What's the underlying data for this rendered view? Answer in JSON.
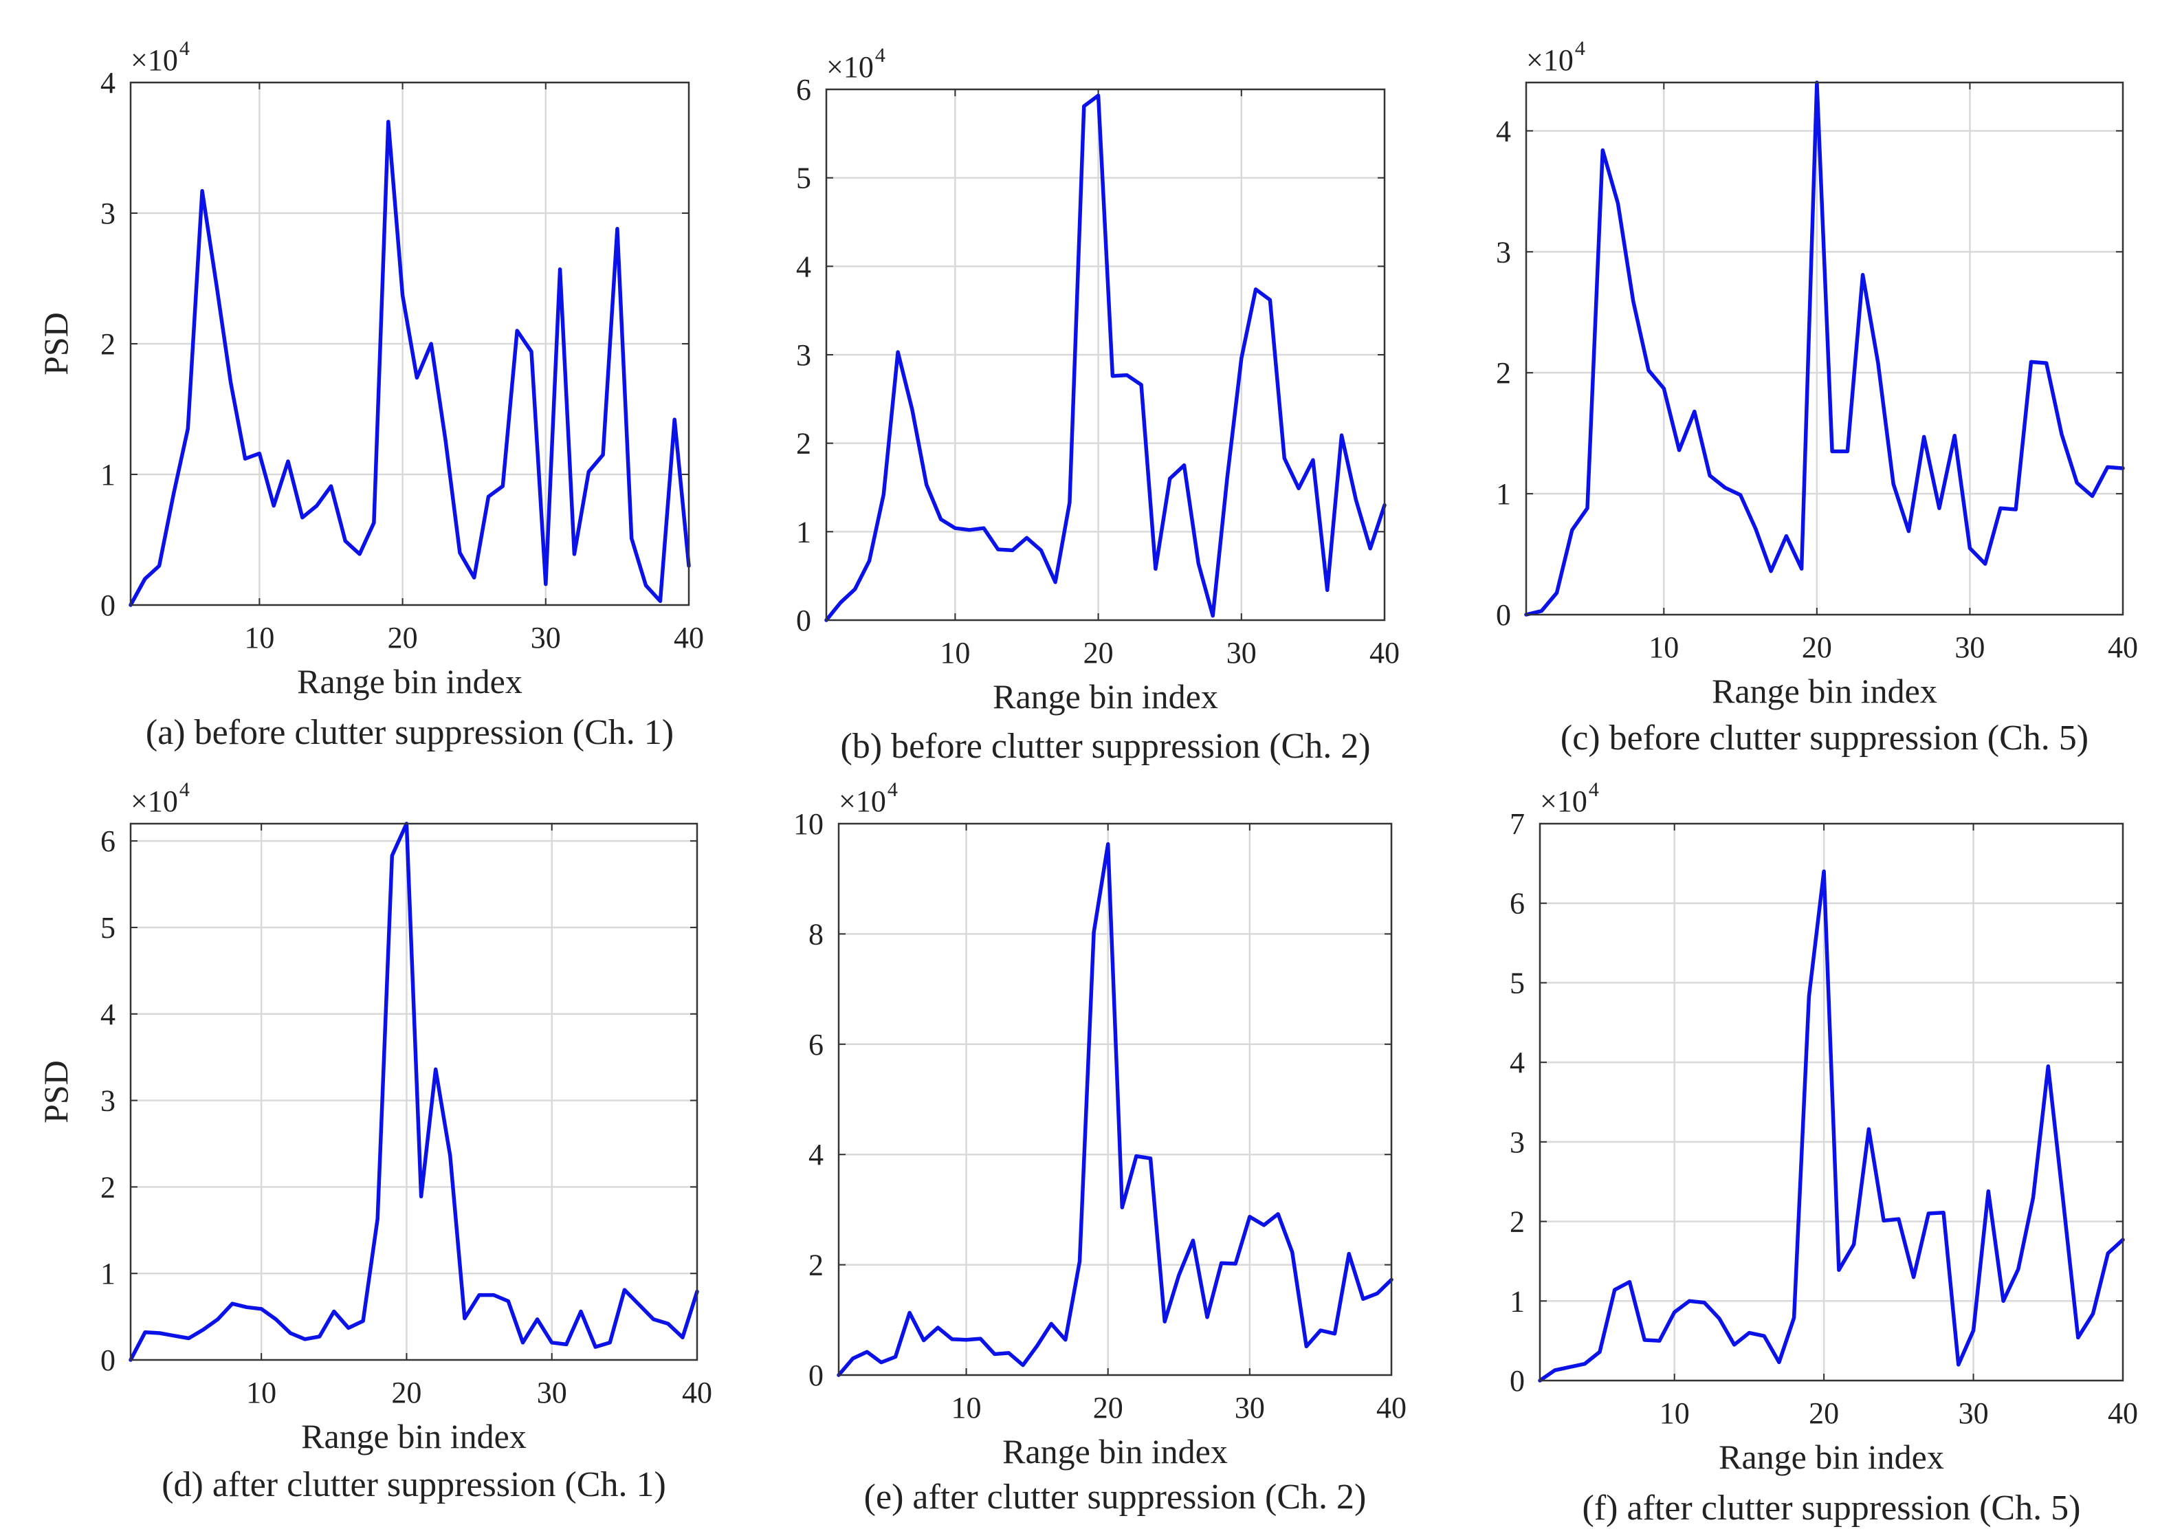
{
  "figure": {
    "captions": [
      "(a) before clutter suppression (Ch. 1)",
      "(b) before clutter suppression  (Ch. 2)",
      "(c) before clutter suppression  (Ch. 5)",
      "(d) after clutter suppression  (Ch. 1)",
      "(e) after clutter suppression  (Ch. 2)",
      "(f) after clutter suppression  (Ch. 5)"
    ]
  },
  "colors": {
    "line": "#0a12e8",
    "grid": "#d9d9d9",
    "axis": "#333333"
  },
  "chart_data": [
    {
      "type": "line",
      "title": "",
      "caption": "(a) before clutter suppression (Ch. 1)",
      "xlabel": "Range bin index",
      "ylabel": "PSD",
      "multiplier": "×10",
      "multiplier_exp": "4",
      "xlim": [
        1,
        40
      ],
      "ylim": [
        0,
        40000
      ],
      "xticks": [
        10,
        20,
        30,
        40
      ],
      "yticks": [
        0,
        10000,
        20000,
        30000,
        40000
      ],
      "ytick_labels": [
        "0",
        "1",
        "2",
        "3",
        "4"
      ],
      "grid": true,
      "x": [
        1,
        2,
        3,
        4,
        5,
        6,
        7,
        8,
        9,
        10,
        11,
        12,
        13,
        14,
        15,
        16,
        17,
        18,
        19,
        20,
        21,
        22,
        23,
        24,
        25,
        26,
        27,
        28,
        29,
        30,
        31,
        32,
        33,
        34,
        35,
        36,
        37,
        38,
        39,
        40
      ],
      "values": [
        0,
        2000,
        3000,
        8500,
        13500,
        31700,
        24500,
        17000,
        11200,
        11600,
        7600,
        11000,
        6700,
        7600,
        9100,
        4900,
        3900,
        6300,
        37000,
        23700,
        17400,
        20000,
        12600,
        4000,
        2100,
        8300,
        9100,
        21000,
        19400,
        1600,
        25700,
        3900,
        10200,
        11500,
        28800,
        5100,
        1500,
        300,
        14200,
        3000
      ]
    },
    {
      "type": "line",
      "title": "",
      "caption": "(b) before clutter suppression  (Ch. 2)",
      "xlabel": "Range bin index",
      "ylabel": "",
      "multiplier": "×10",
      "multiplier_exp": "4",
      "xlim": [
        1,
        40
      ],
      "ylim": [
        0,
        60000
      ],
      "xticks": [
        10,
        20,
        30,
        40
      ],
      "yticks": [
        0,
        10000,
        20000,
        30000,
        40000,
        50000,
        60000
      ],
      "ytick_labels": [
        "0",
        "1",
        "2",
        "3",
        "4",
        "5",
        "6"
      ],
      "grid": true,
      "x": [
        1,
        2,
        3,
        4,
        5,
        6,
        7,
        8,
        9,
        10,
        11,
        12,
        13,
        14,
        15,
        16,
        17,
        18,
        19,
        20,
        21,
        22,
        23,
        24,
        25,
        26,
        27,
        28,
        29,
        30,
        31,
        32,
        33,
        34,
        35,
        36,
        37,
        38,
        39,
        40
      ],
      "values": [
        0,
        2000,
        3500,
        6700,
        14200,
        30300,
        23800,
        15300,
        11400,
        10400,
        10200,
        10400,
        8000,
        7900,
        9300,
        7900,
        4300,
        13300,
        58100,
        59300,
        27600,
        27700,
        26600,
        5800,
        16000,
        17500,
        6400,
        500,
        16000,
        29600,
        37400,
        36200,
        18300,
        14900,
        18100,
        3400,
        20900,
        13600,
        8100,
        13000
      ]
    },
    {
      "type": "line",
      "title": "",
      "caption": "(c) before clutter suppression  (Ch. 5)",
      "xlabel": "Range bin index",
      "ylabel": "",
      "multiplier": "×10",
      "multiplier_exp": "4",
      "xlim": [
        1,
        40
      ],
      "ylim": [
        0,
        44000
      ],
      "xticks": [
        10,
        20,
        30,
        40
      ],
      "yticks": [
        0,
        10000,
        20000,
        30000,
        40000
      ],
      "ytick_labels": [
        "0",
        "1",
        "2",
        "3",
        "4"
      ],
      "grid": true,
      "x": [
        1,
        2,
        3,
        4,
        5,
        6,
        7,
        8,
        9,
        10,
        11,
        12,
        13,
        14,
        15,
        16,
        17,
        18,
        19,
        20,
        21,
        22,
        23,
        24,
        25,
        26,
        27,
        28,
        29,
        30,
        31,
        32,
        33,
        34,
        35,
        36,
        37,
        38,
        39,
        40
      ],
      "values": [
        0,
        300,
        1800,
        7000,
        8800,
        38400,
        34000,
        25900,
        20200,
        18700,
        13600,
        16800,
        11500,
        10500,
        9900,
        7100,
        3600,
        6500,
        3800,
        44000,
        13500,
        13500,
        28100,
        20800,
        10800,
        6900,
        14700,
        8800,
        14800,
        5500,
        4200,
        8800,
        8700,
        20900,
        20800,
        14900,
        10900,
        9800,
        12200,
        12100
      ]
    },
    {
      "type": "line",
      "title": "",
      "caption": "(d) after clutter suppression  (Ch. 1)",
      "xlabel": "Range bin index",
      "ylabel": "PSD",
      "multiplier": "×10",
      "multiplier_exp": "4",
      "xlim": [
        1,
        40
      ],
      "ylim": [
        0,
        62000
      ],
      "xticks": [
        10,
        20,
        30,
        40
      ],
      "yticks": [
        0,
        10000,
        20000,
        30000,
        40000,
        50000,
        60000
      ],
      "ytick_labels": [
        "0",
        "1",
        "2",
        "3",
        "4",
        "5",
        "6"
      ],
      "grid": true,
      "x": [
        1,
        2,
        3,
        4,
        5,
        6,
        7,
        8,
        9,
        10,
        11,
        12,
        13,
        14,
        15,
        16,
        17,
        18,
        19,
        20,
        21,
        22,
        23,
        24,
        25,
        26,
        27,
        28,
        29,
        30,
        31,
        32,
        33,
        34,
        35,
        36,
        37,
        38,
        39,
        40
      ],
      "values": [
        0,
        3200,
        3100,
        2800,
        2500,
        3500,
        4700,
        6500,
        6100,
        5900,
        4700,
        3100,
        2400,
        2700,
        5600,
        3700,
        4500,
        16300,
        58300,
        62000,
        18900,
        33600,
        23600,
        4800,
        7500,
        7500,
        6800,
        2000,
        4700,
        2000,
        1800,
        5600,
        1500,
        2000,
        8100,
        6400,
        4700,
        4200,
        2600,
        7900
      ]
    },
    {
      "type": "line",
      "title": "",
      "caption": "(e) after clutter suppression  (Ch. 2)",
      "xlabel": "Range bin index",
      "ylabel": "",
      "multiplier": "×10",
      "multiplier_exp": "4",
      "xlim": [
        1,
        40
      ],
      "ylim": [
        0,
        100000
      ],
      "xticks": [
        10,
        20,
        30,
        40
      ],
      "yticks": [
        0,
        20000,
        40000,
        60000,
        80000,
        100000
      ],
      "ytick_labels": [
        "0",
        "2",
        "4",
        "6",
        "8",
        "10"
      ],
      "grid": true,
      "x": [
        1,
        2,
        3,
        4,
        5,
        6,
        7,
        8,
        9,
        10,
        11,
        12,
        13,
        14,
        15,
        16,
        17,
        18,
        19,
        20,
        21,
        22,
        23,
        24,
        25,
        26,
        27,
        28,
        29,
        30,
        31,
        32,
        33,
        34,
        35,
        36,
        37,
        38,
        39,
        40
      ],
      "values": [
        0,
        3000,
        4200,
        2300,
        3300,
        11300,
        6300,
        8600,
        6500,
        6400,
        6600,
        3800,
        4000,
        1800,
        5300,
        9300,
        6400,
        20600,
        80300,
        96300,
        30400,
        39700,
        39300,
        9700,
        18100,
        24400,
        10500,
        20300,
        20200,
        28700,
        27200,
        29200,
        22300,
        5200,
        8100,
        7500,
        22000,
        13800,
        14800,
        17300
      ]
    },
    {
      "type": "line",
      "title": "",
      "caption": "(f) after clutter suppression  (Ch. 5)",
      "xlabel": "Range bin index",
      "ylabel": "",
      "multiplier": "×10",
      "multiplier_exp": "4",
      "xlim": [
        1,
        40
      ],
      "ylim": [
        0,
        70000
      ],
      "xticks": [
        10,
        20,
        30,
        40
      ],
      "yticks": [
        0,
        10000,
        20000,
        30000,
        40000,
        50000,
        60000,
        70000
      ],
      "ytick_labels": [
        "0",
        "1",
        "2",
        "3",
        "4",
        "5",
        "6",
        "7"
      ],
      "grid": true,
      "x": [
        1,
        2,
        3,
        4,
        5,
        6,
        7,
        8,
        9,
        10,
        11,
        12,
        13,
        14,
        15,
        16,
        17,
        18,
        19,
        20,
        21,
        22,
        23,
        24,
        25,
        26,
        27,
        28,
        29,
        30,
        31,
        32,
        33,
        34,
        35,
        36,
        37,
        38,
        39,
        40
      ],
      "values": [
        0,
        1300,
        1700,
        2100,
        3600,
        11400,
        12400,
        5100,
        5000,
        8600,
        10000,
        9800,
        7800,
        4500,
        6000,
        5600,
        2300,
        7900,
        48300,
        64000,
        13900,
        17100,
        31600,
        20100,
        20300,
        13000,
        21000,
        21100,
        2000,
        6300,
        23800,
        10000,
        14000,
        23000,
        39500,
        22700,
        5400,
        8400,
        16000,
        17700
      ]
    }
  ]
}
